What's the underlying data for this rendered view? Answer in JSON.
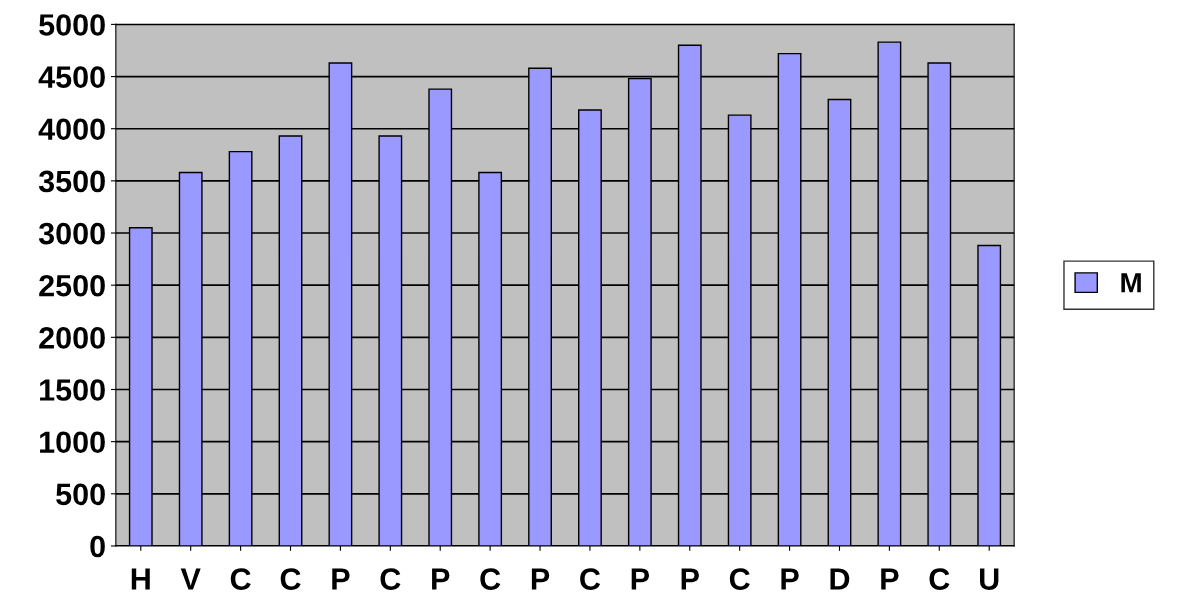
{
  "chart_data": {
    "type": "bar",
    "categories": [
      "H",
      "V",
      "C",
      "C",
      "P",
      "C",
      "P",
      "C",
      "P",
      "C",
      "P",
      "P",
      "C",
      "P",
      "D",
      "P",
      "C",
      "U"
    ],
    "series": [
      {
        "name": "M",
        "color": "#9999ff",
        "values": [
          3050,
          3580,
          3780,
          3930,
          4630,
          3930,
          4380,
          3580,
          4580,
          4180,
          4480,
          4800,
          4130,
          4720,
          4280,
          4830,
          4630,
          2880
        ]
      }
    ],
    "ylim": [
      0,
      5000
    ],
    "yticks": [
      0,
      500,
      1000,
      1500,
      2000,
      2500,
      3000,
      3500,
      4000,
      4500,
      5000
    ],
    "grid": "y",
    "legend": "right"
  }
}
